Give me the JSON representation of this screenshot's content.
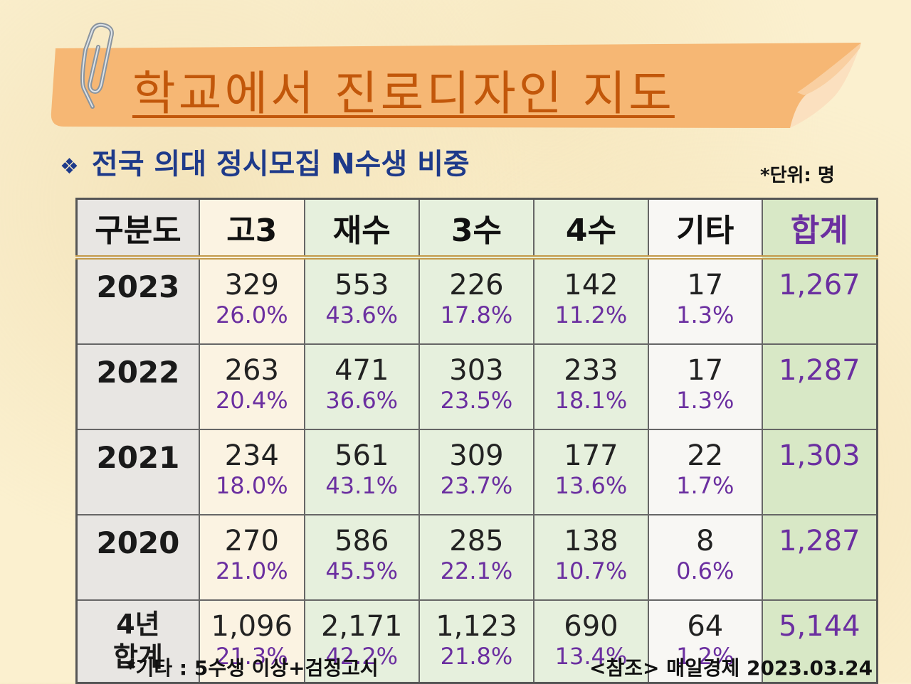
{
  "title": "학교에서 진로디자인 지도",
  "subtitle_mark": "❖",
  "subtitle": "전국 의대 정시모집 N수생 비중",
  "unit_note": "*단위: 명",
  "table": {
    "headers": [
      "구분도",
      "고3",
      "재수",
      "3수",
      "4수",
      "기타",
      "합계"
    ],
    "rows": [
      {
        "label": "2023",
        "cells": [
          [
            "329",
            "26.0%"
          ],
          [
            "553",
            "43.6%"
          ],
          [
            "226",
            "17.8%"
          ],
          [
            "142",
            "11.2%"
          ],
          [
            "17",
            "1.3%"
          ]
        ],
        "total": "1,267"
      },
      {
        "label": "2022",
        "cells": [
          [
            "263",
            "20.4%"
          ],
          [
            "471",
            "36.6%"
          ],
          [
            "303",
            "23.5%"
          ],
          [
            "233",
            "18.1%"
          ],
          [
            "17",
            "1.3%"
          ]
        ],
        "total": "1,287"
      },
      {
        "label": "2021",
        "cells": [
          [
            "234",
            "18.0%"
          ],
          [
            "561",
            "43.1%"
          ],
          [
            "309",
            "23.7%"
          ],
          [
            "177",
            "13.6%"
          ],
          [
            "22",
            "1.7%"
          ]
        ],
        "total": "1,303"
      },
      {
        "label": "2020",
        "cells": [
          [
            "270",
            "21.0%"
          ],
          [
            "586",
            "45.5%"
          ],
          [
            "285",
            "22.1%"
          ],
          [
            "138",
            "10.7%"
          ],
          [
            "8",
            "0.6%"
          ]
        ],
        "total": "1,287"
      },
      {
        "label": "4년 합계",
        "label_line1": "4년",
        "label_line2": "합계",
        "cells": [
          [
            "1,096",
            "21.3%"
          ],
          [
            "2,171",
            "42.2%"
          ],
          [
            "1,123",
            "21.8%"
          ],
          [
            "690",
            "13.4%"
          ],
          [
            "64",
            "1.2%"
          ]
        ],
        "total": "5,144"
      }
    ]
  },
  "footnote": "*기타 : 5수생 이상+검정고시",
  "source": "<참조> 매일경제 2023.03.24",
  "colors": {
    "title": "#c2570a",
    "banner": "#f6b774",
    "subtitle": "#1e3a8a",
    "percent": "#6b2fa0",
    "total_bg": "#d8e8c6"
  }
}
